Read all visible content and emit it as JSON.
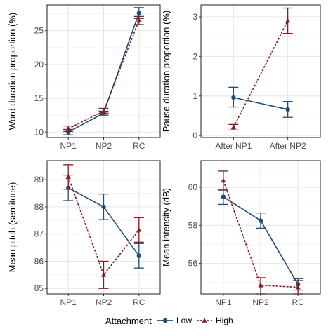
{
  "colors": {
    "low": "#1f4e79",
    "high": "#8b1a1a",
    "panel_border": "#333333",
    "grid_major": "#e6e6e6",
    "grid_minor": "#f3f3f3",
    "tick_text": "#4d4d4d"
  },
  "legend": {
    "title": "Attachment",
    "items": [
      {
        "label": "Low",
        "series": "low"
      },
      {
        "label": "High",
        "series": "high"
      }
    ]
  },
  "chart_data": [
    {
      "type": "line",
      "ylabel": "Word duration proportion (%)",
      "categories": [
        "NP1",
        "NP2",
        "RC"
      ],
      "ylim": [
        9.2,
        28.8
      ],
      "yticks": [
        10,
        15,
        20,
        25
      ],
      "grid": true,
      "series": [
        {
          "name": "Low",
          "marker": "circle",
          "linestyle": "solid",
          "values": [
            10.0,
            12.8,
            27.6
          ],
          "error_low": [
            9.6,
            12.5,
            26.8
          ],
          "error_high": [
            10.4,
            13.1,
            28.4
          ]
        },
        {
          "name": "High",
          "marker": "triangle",
          "linestyle": "dashed",
          "values": [
            10.5,
            13.1,
            26.5
          ],
          "error_low": [
            10.1,
            12.8,
            25.9
          ],
          "error_high": [
            10.9,
            13.5,
            27.1
          ]
        }
      ]
    },
    {
      "type": "line",
      "ylabel": "Pause duration proportion (%)",
      "categories": [
        "After NP1",
        "After NP2"
      ],
      "ylim": [
        -0.05,
        3.3
      ],
      "yticks": [
        0,
        1,
        2,
        3
      ],
      "grid": true,
      "series": [
        {
          "name": "Low",
          "marker": "circle",
          "linestyle": "solid",
          "values": [
            0.96,
            0.66
          ],
          "error_low": [
            0.72,
            0.46
          ],
          "error_high": [
            1.22,
            0.86
          ]
        },
        {
          "name": "High",
          "marker": "triangle",
          "linestyle": "dashed",
          "values": [
            0.21,
            2.9
          ],
          "error_low": [
            0.14,
            2.58
          ],
          "error_high": [
            0.28,
            3.22
          ]
        }
      ]
    },
    {
      "type": "line",
      "ylabel": "Mean pitch (semitone)",
      "categories": [
        "NP1",
        "NP2",
        "RC"
      ],
      "ylim": [
        84.8,
        89.7
      ],
      "yticks": [
        85,
        86,
        87,
        88,
        89
      ],
      "grid": true,
      "series": [
        {
          "name": "Low",
          "marker": "circle",
          "linestyle": "solid",
          "values": [
            88.7,
            88.0,
            86.2
          ],
          "error_low": [
            88.23,
            87.53,
            85.75
          ],
          "error_high": [
            89.17,
            88.47,
            86.65
          ]
        },
        {
          "name": "High",
          "marker": "triangle",
          "linestyle": "dashed",
          "values": [
            89.1,
            85.5,
            87.15
          ],
          "error_low": [
            88.65,
            85.0,
            86.7
          ],
          "error_high": [
            89.55,
            86.0,
            87.6
          ]
        }
      ]
    },
    {
      "type": "line",
      "ylabel": "Mean intensity (dB)",
      "categories": [
        "NP1",
        "NP2",
        "RC"
      ],
      "ylim": [
        54.4,
        61.4
      ],
      "yticks": [
        56,
        58,
        60
      ],
      "grid": true,
      "series": [
        {
          "name": "Low",
          "marker": "circle",
          "linestyle": "solid",
          "values": [
            59.5,
            58.25,
            54.9
          ],
          "error_low": [
            59.1,
            57.85,
            54.6
          ],
          "error_high": [
            59.9,
            58.65,
            55.2
          ]
        },
        {
          "name": "High",
          "marker": "triangle",
          "linestyle": "dashed",
          "values": [
            60.35,
            54.85,
            54.75
          ],
          "error_low": [
            59.85,
            54.4,
            54.4
          ],
          "error_high": [
            60.85,
            55.25,
            55.1
          ]
        }
      ]
    }
  ]
}
